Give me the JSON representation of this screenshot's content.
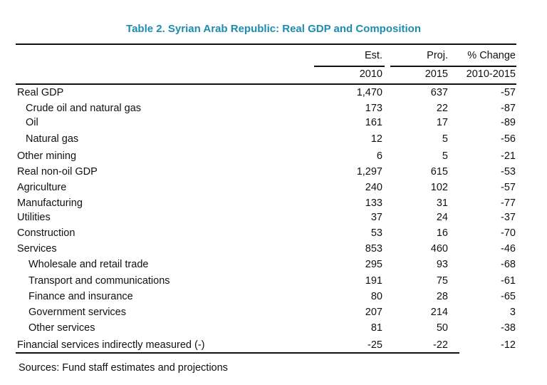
{
  "title": "Table 2. Syrian Arab Republic: Real GDP and Composition",
  "headers": {
    "est": "Est.",
    "proj": "Proj.",
    "change": "% Change",
    "year_est": "2010",
    "year_proj": "2015",
    "year_change": "2010-2015"
  },
  "rows": [
    {
      "label": "Real GDP",
      "est": "1,470",
      "proj": "637",
      "change": "-57",
      "indent": 0
    },
    {
      "label": "Crude oil and natural gas",
      "est": "173",
      "proj": "22",
      "change": "-87",
      "indent": 1
    },
    {
      "label": "Oil",
      "est": "161",
      "proj": "17",
      "change": "-89",
      "indent": 1
    },
    {
      "label": "Natural gas",
      "est": "12",
      "proj": "5",
      "change": "-56",
      "indent": 1
    },
    {
      "label": "Other mining",
      "est": "6",
      "proj": "5",
      "change": "-21",
      "indent": 0
    },
    {
      "label": "Real non-oil GDP",
      "est": "1,297",
      "proj": "615",
      "change": "-53",
      "indent": 0
    },
    {
      "label": "Agriculture",
      "est": "240",
      "proj": "102",
      "change": "-57",
      "indent": 0
    },
    {
      "label": "Manufacturing",
      "est": "133",
      "proj": "31",
      "change": "-77",
      "indent": 0
    },
    {
      "label": "Utilities",
      "est": "37",
      "proj": "24",
      "change": "-37",
      "indent": 0
    },
    {
      "label": "Construction",
      "est": "53",
      "proj": "16",
      "change": "-70",
      "indent": 0
    },
    {
      "label": "Services",
      "est": "853",
      "proj": "460",
      "change": "-46",
      "indent": 0
    },
    {
      "label": "Wholesale and retail trade",
      "est": "295",
      "proj": "93",
      "change": "-68",
      "indent": 2
    },
    {
      "label": "Transport and communications",
      "est": "191",
      "proj": "75",
      "change": "-61",
      "indent": 2
    },
    {
      "label": "Finance and insurance",
      "est": "80",
      "proj": "28",
      "change": "-65",
      "indent": 2
    },
    {
      "label": "Government services",
      "est": "207",
      "proj": "214",
      "change": "3",
      "indent": 2
    },
    {
      "label": "Other services",
      "est": "81",
      "proj": "50",
      "change": "-38",
      "indent": 2
    },
    {
      "label": "Financial services indirectly measured (-)",
      "est": "-25",
      "proj": "-22",
      "change": "-12",
      "indent": 0
    }
  ],
  "source": "Sources:  Fund staff estimates and projections"
}
